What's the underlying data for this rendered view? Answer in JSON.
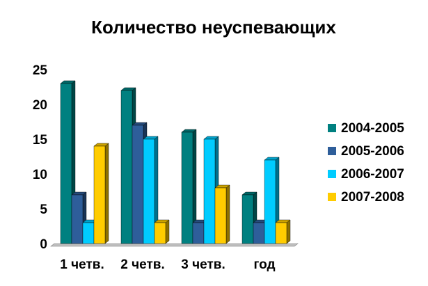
{
  "chart_data": {
    "type": "bar",
    "title": "Количество неуспевающих",
    "categories": [
      "1 четв.",
      "2 четв.",
      "3 четв.",
      "год"
    ],
    "ylim": [
      0,
      25
    ],
    "yticks": [
      "0",
      "5",
      "10",
      "15",
      "20",
      "25"
    ],
    "grid": false,
    "legend_position": "right",
    "series": [
      {
        "name": "2004-2005",
        "color": "#008080",
        "values": [
          23,
          22,
          16,
          7
        ]
      },
      {
        "name": "2005-2006",
        "color": "#2E5E9A",
        "values": [
          7,
          17,
          3,
          3
        ]
      },
      {
        "name": "2006-2007",
        "color": "#00CCFF",
        "values": [
          3,
          15,
          15,
          12
        ]
      },
      {
        "name": "2007-2008",
        "color": "#FFCC00",
        "values": [
          14,
          3,
          8,
          3
        ]
      }
    ]
  }
}
